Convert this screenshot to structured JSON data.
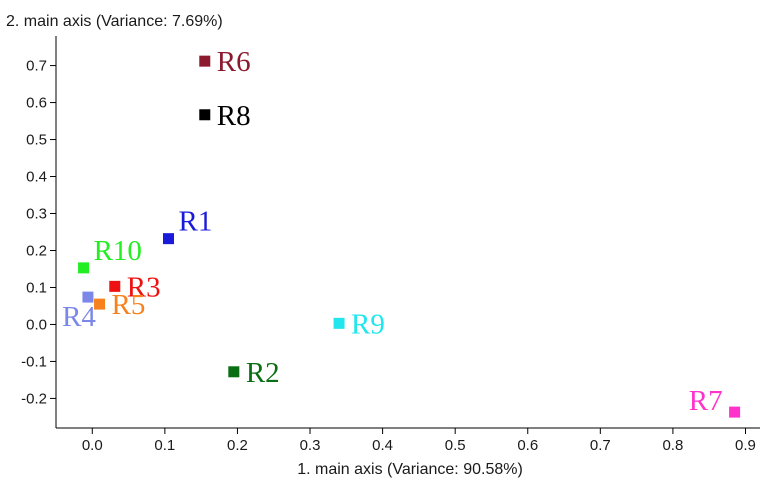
{
  "chart_data": {
    "type": "scatter",
    "title": "",
    "xlabel": "1. main axis (Variance: 90.58%)",
    "ylabel": "2. main axis (Variance: 7.69%)",
    "xlim": [
      -0.05,
      0.92
    ],
    "ylim": [
      -0.28,
      0.78
    ],
    "xticks": [
      0.0,
      0.1,
      0.2,
      0.3,
      0.4,
      0.5,
      0.6,
      0.7,
      0.8,
      0.9
    ],
    "yticks": [
      -0.2,
      -0.1,
      0.0,
      0.1,
      0.2,
      0.3,
      0.4,
      0.5,
      0.6,
      0.7
    ],
    "xtick_labels": [
      "0.0",
      "0.1",
      "0.2",
      "0.3",
      "0.4",
      "0.5",
      "0.6",
      "0.7",
      "0.8",
      "0.9"
    ],
    "ytick_labels": [
      "-0.2",
      "-0.1",
      "0.0",
      "0.1",
      "0.2",
      "0.3",
      "0.4",
      "0.5",
      "0.6",
      "0.7"
    ],
    "grid": false,
    "legend": false,
    "points": [
      {
        "label": "R1",
        "x": 0.105,
        "y": 0.232,
        "color": "#1a1adb",
        "label_side": "above-right"
      },
      {
        "label": "R2",
        "x": 0.195,
        "y": -0.128,
        "color": "#0a6e14",
        "label_side": "right"
      },
      {
        "label": "R3",
        "x": 0.031,
        "y": 0.103,
        "color": "#ee1111",
        "label_side": "right"
      },
      {
        "label": "R4",
        "x": -0.006,
        "y": 0.074,
        "color": "#7b88ea",
        "label_side": "below-left"
      },
      {
        "label": "R5",
        "x": 0.01,
        "y": 0.055,
        "color": "#f5821f",
        "label_side": "right"
      },
      {
        "label": "R6",
        "x": 0.155,
        "y": 0.712,
        "color": "#8b1a2e",
        "label_side": "right"
      },
      {
        "label": "R7",
        "x": 0.885,
        "y": -0.237,
        "color": "#ff33cc",
        "label_side": "above-left"
      },
      {
        "label": "R8",
        "x": 0.155,
        "y": 0.567,
        "color": "#000000",
        "label_side": "right"
      },
      {
        "label": "R9",
        "x": 0.34,
        "y": 0.003,
        "color": "#22e6ee",
        "label_side": "right"
      },
      {
        "label": "R10",
        "x": -0.012,
        "y": 0.153,
        "color": "#22ee22",
        "label_side": "above-right"
      }
    ]
  }
}
